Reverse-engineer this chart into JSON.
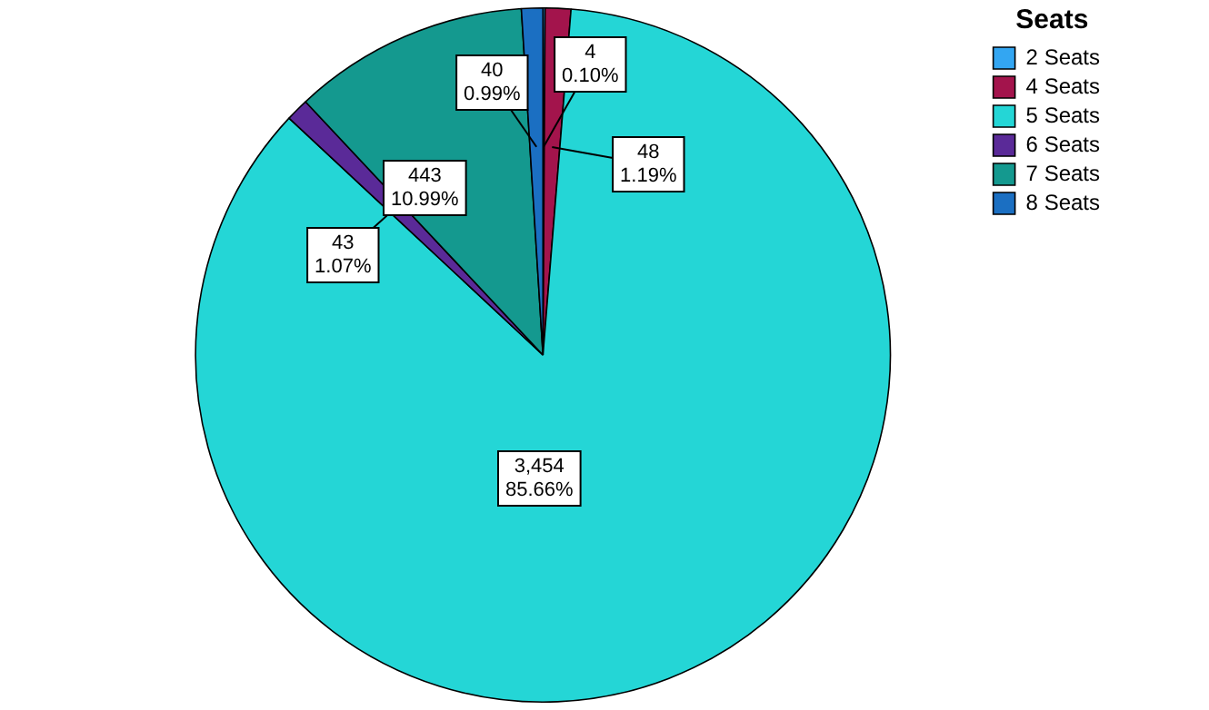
{
  "chart_data": {
    "type": "pie",
    "legend_title": "Seats",
    "legend": "top right",
    "categories": [
      "2 Seats",
      "4 Seats",
      "5 Seats",
      "6 Seats",
      "7 Seats",
      "8 Seats"
    ],
    "values": [
      4,
      48,
      3454,
      43,
      443,
      40
    ],
    "colors": [
      "#33a6f2",
      "#a3144c",
      "#24d6d6",
      "#5a2a98",
      "#14998f",
      "#1b6fc2"
    ],
    "value_labels": [
      "4\n0.10%",
      "48\n1.19%",
      "3,454\n85.66%",
      "43\n1.07%",
      "443\n10.99%",
      "40\n0.99%"
    ]
  }
}
